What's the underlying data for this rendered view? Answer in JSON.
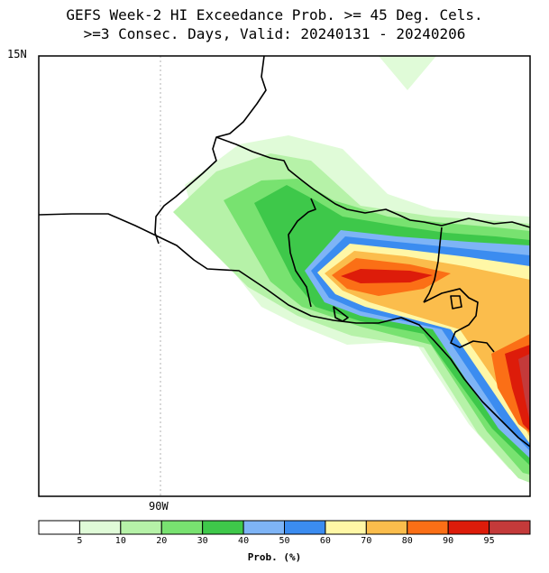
{
  "title_line1": "GEFS Week-2 HI Exceedance Prob. >= 45 Deg. Cels.",
  "title_line2": ">=3 Consec. Days, Valid: 20240131 - 20240206",
  "lat_label": "15N",
  "lon_label": "90W",
  "colorbar": {
    "title": "Prob. (%)",
    "ticks": [
      "5",
      "10",
      "20",
      "30",
      "40",
      "50",
      "60",
      "70",
      "80",
      "90",
      "95"
    ],
    "colors": [
      "#ffffff",
      "#e0fbd8",
      "#b6f2a8",
      "#78e270",
      "#3ec84a",
      "#7eb4f6",
      "#3b8cf0",
      "#fff7a6",
      "#fbbd4c",
      "#fb6f16",
      "#dd1c0a",
      "#c43a3a"
    ]
  },
  "colors": {
    "ocean_bg": "#ffffff",
    "coast": "#000000"
  }
}
